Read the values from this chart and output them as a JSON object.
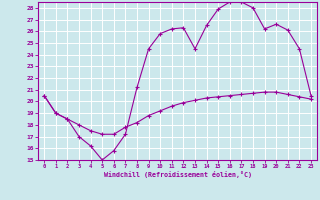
{
  "xlabel": "Windchill (Refroidissement éolien,°C)",
  "bg_color": "#cce8ec",
  "grid_color": "#ffffff",
  "line_color": "#990099",
  "xlim": [
    -0.5,
    23.5
  ],
  "ylim": [
    15,
    28.5
  ],
  "xticks": [
    0,
    1,
    2,
    3,
    4,
    5,
    6,
    7,
    8,
    9,
    10,
    11,
    12,
    13,
    14,
    15,
    16,
    17,
    18,
    19,
    20,
    21,
    22,
    23
  ],
  "yticks": [
    15,
    16,
    17,
    18,
    19,
    20,
    21,
    22,
    23,
    24,
    25,
    26,
    27,
    28
  ],
  "series1_x": [
    0,
    1,
    2,
    3,
    4,
    5,
    6,
    7,
    8,
    9,
    10,
    11,
    12,
    13,
    14,
    15,
    16,
    17,
    18,
    19,
    20,
    21,
    22,
    23
  ],
  "series1_y": [
    20.5,
    19.0,
    18.5,
    18.0,
    17.5,
    17.2,
    17.2,
    17.8,
    18.2,
    18.8,
    19.2,
    19.6,
    19.9,
    20.1,
    20.3,
    20.4,
    20.5,
    20.6,
    20.7,
    20.8,
    20.8,
    20.6,
    20.4,
    20.2
  ],
  "series2_x": [
    0,
    1,
    2,
    3,
    4,
    5,
    6,
    7,
    8,
    9,
    10,
    11,
    12,
    13,
    14,
    15,
    16,
    17,
    18,
    19,
    20,
    21,
    22,
    23
  ],
  "series2_y": [
    20.5,
    19.0,
    18.5,
    17.0,
    16.2,
    15.0,
    15.8,
    17.2,
    21.2,
    24.5,
    25.8,
    26.2,
    26.3,
    24.5,
    26.5,
    27.9,
    28.5,
    28.5,
    28.0,
    26.2,
    26.6,
    26.1,
    24.5,
    20.5
  ]
}
